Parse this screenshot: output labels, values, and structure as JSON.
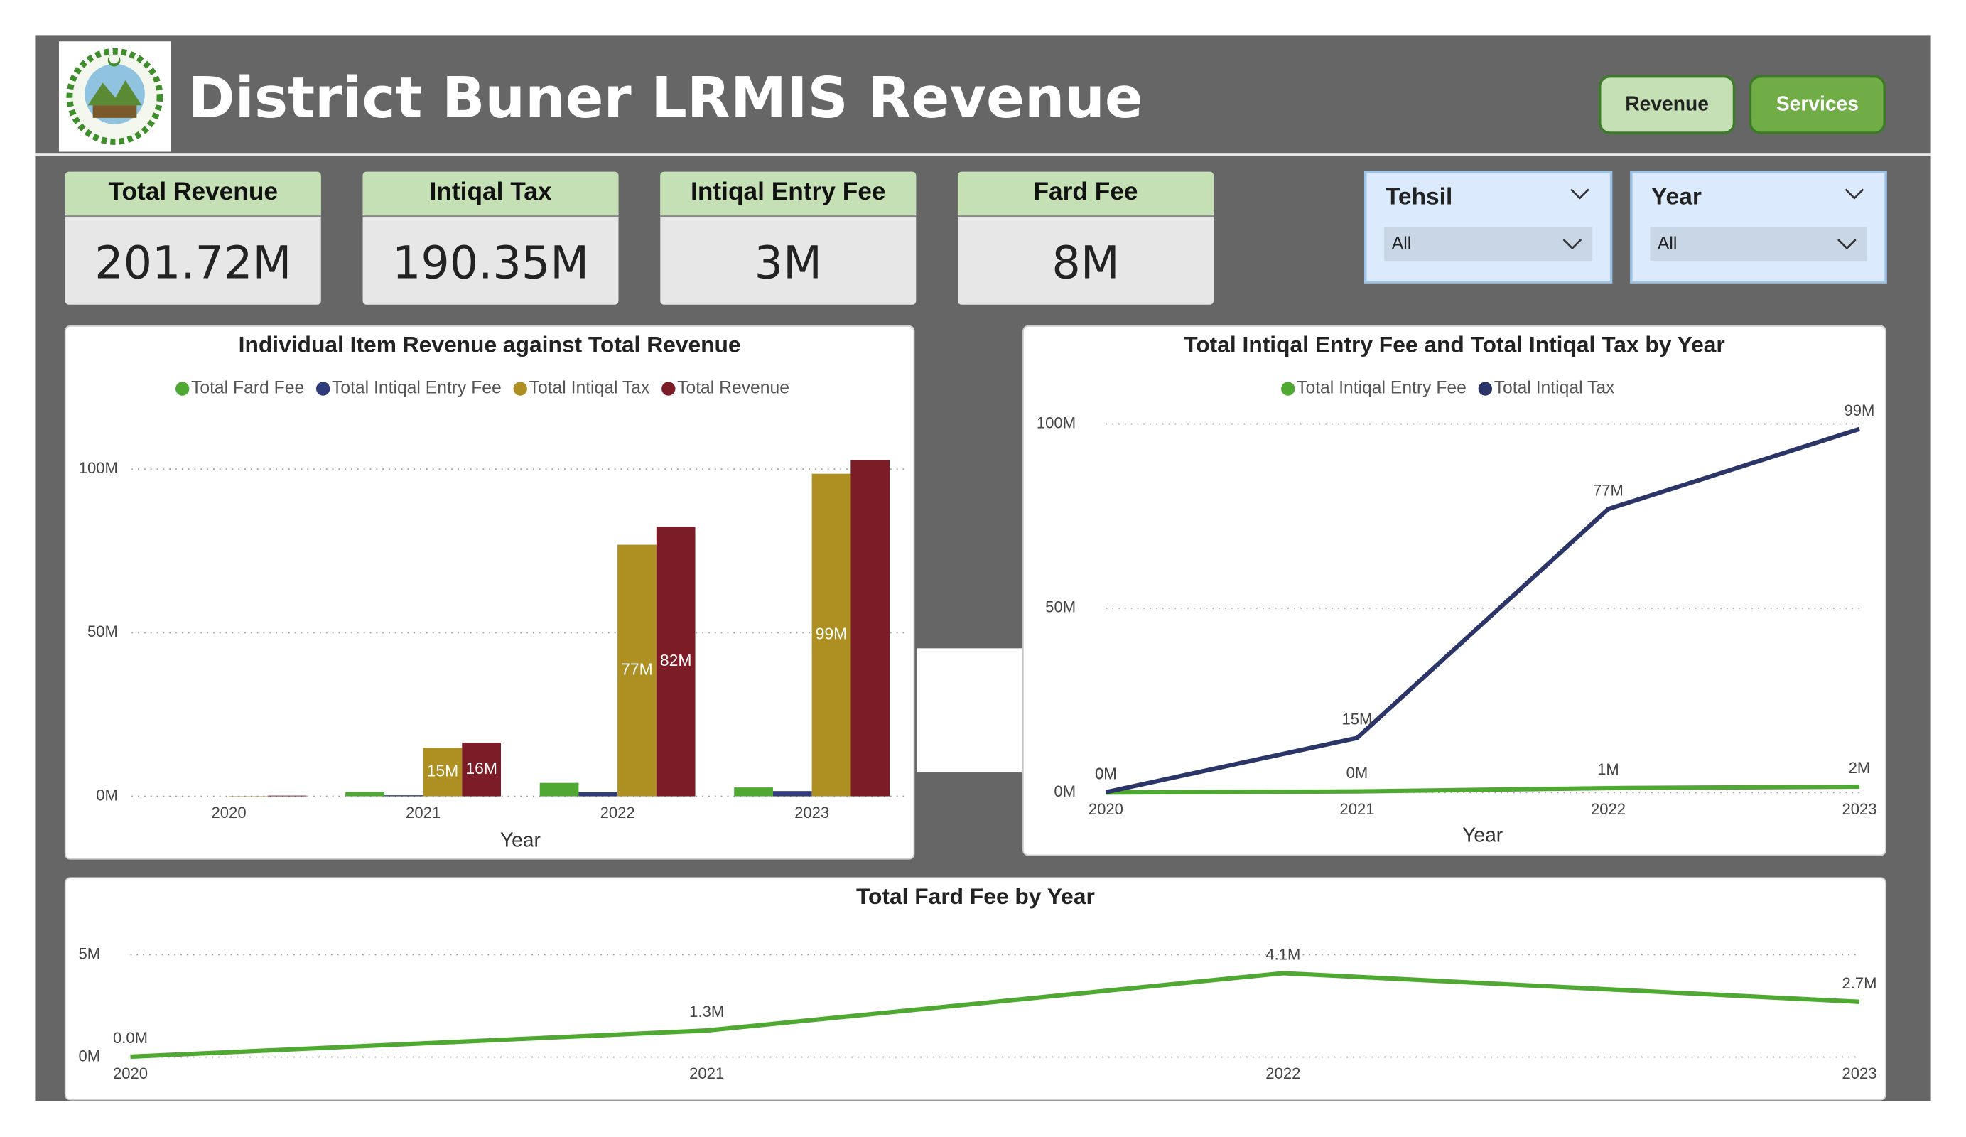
{
  "header": {
    "title": "District Buner LRMIS Revenue",
    "buttons": [
      "Revenue",
      "Services"
    ]
  },
  "cards": [
    {
      "label": "Total Revenue",
      "value": "201.72M"
    },
    {
      "label": "Intiqal Tax",
      "value": "190.35M"
    },
    {
      "label": "Intiqal Entry Fee",
      "value": "3M"
    },
    {
      "label": "Fard Fee",
      "value": "8M"
    }
  ],
  "slicers": [
    {
      "label": "Tehsil",
      "value": "All"
    },
    {
      "label": "Year",
      "value": "All"
    }
  ],
  "chart_data": [
    {
      "type": "bar",
      "title": "Individual Item Revenue against Total Revenue",
      "x_label": "Year",
      "categories": [
        "2020",
        "2021",
        "2022",
        "2023"
      ],
      "series": [
        {
          "name": "Total Fard Fee",
          "color": "#4ea832",
          "values": [
            0.02,
            1.3,
            4.1,
            2.7
          ]
        },
        {
          "name": "Total Intiqal Entry Fee",
          "color": "#2f3b7a",
          "values": [
            0,
            0.3,
            1.2,
            1.6
          ]
        },
        {
          "name": "Total Intiqal Tax",
          "color": "#ad8f22",
          "values": [
            0.1,
            14.8,
            76.9,
            98.6
          ],
          "value_labels": [
            null,
            "15M",
            "77M",
            "99M"
          ]
        },
        {
          "name": "Total Revenue",
          "color": "#7b1c27",
          "values": [
            0.2,
            16.4,
            82.4,
            102.7
          ],
          "value_labels": [
            null,
            "16M",
            "82M",
            null
          ]
        }
      ],
      "ylim": [
        0,
        115
      ],
      "yticks": [
        {
          "value": 0,
          "label": "0M"
        },
        {
          "value": 50,
          "label": "50M"
        },
        {
          "value": 100,
          "label": "100M"
        }
      ],
      "grid": true,
      "legend": "top"
    },
    {
      "type": "line",
      "title": "Total Intiqal Entry Fee and Total Intiqal Tax by Year",
      "x_label": "Year",
      "categories": [
        "2020",
        "2021",
        "2022",
        "2023"
      ],
      "series": [
        {
          "name": "Total Intiqal Entry Fee",
          "color": "#4ea832",
          "values": [
            0,
            0.3,
            1.2,
            1.6
          ],
          "value_labels": [
            "0M",
            "0M",
            "1M",
            "2M"
          ]
        },
        {
          "name": "Total Intiqal Tax",
          "color": "#2b3568",
          "values": [
            0.1,
            14.8,
            76.9,
            98.6
          ],
          "value_labels": [
            "0M",
            "15M",
            "77M",
            "99M"
          ]
        }
      ],
      "ylim": [
        0,
        100
      ],
      "yticks": [
        {
          "value": 0,
          "label": "0M"
        },
        {
          "value": 50,
          "label": "50M"
        },
        {
          "value": 100,
          "label": "100M"
        }
      ],
      "grid": true,
      "legend": "top"
    },
    {
      "type": "line",
      "title": "Total Fard Fee by Year",
      "categories": [
        "2020",
        "2021",
        "2022",
        "2023"
      ],
      "values": [
        0.02,
        1.3,
        4.1,
        2.7
      ],
      "value_labels": [
        "0.0M",
        "1.3M",
        "4.1M",
        "2.7M"
      ],
      "color": "#4ea832",
      "ylim": [
        0,
        6
      ],
      "yticks": [
        {
          "value": 0,
          "label": "0M"
        },
        {
          "value": 5,
          "label": "5M"
        }
      ],
      "grid": true
    }
  ]
}
